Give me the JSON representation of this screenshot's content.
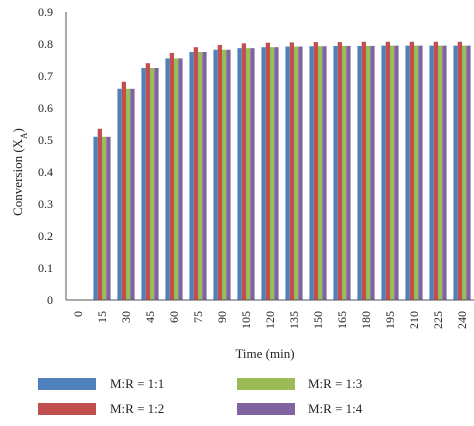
{
  "chart_data": {
    "type": "bar",
    "categories": [
      "0",
      "15",
      "30",
      "45",
      "60",
      "75",
      "90",
      "105",
      "120",
      "135",
      "150",
      "165",
      "180",
      "195",
      "210",
      "225",
      "240"
    ],
    "series": [
      {
        "name": "M:R = 1:1",
        "color": "#4f81bd",
        "values": [
          0,
          0.51,
          0.66,
          0.725,
          0.755,
          0.775,
          0.782,
          0.787,
          0.79,
          0.792,
          0.793,
          0.794,
          0.794,
          0.795,
          0.795,
          0.795,
          0.795
        ]
      },
      {
        "name": "M:R = 1:2",
        "color": "#c0504d",
        "values": [
          0,
          0.535,
          0.682,
          0.74,
          0.772,
          0.79,
          0.797,
          0.802,
          0.804,
          0.805,
          0.806,
          0.806,
          0.807,
          0.807,
          0.807,
          0.807,
          0.807
        ]
      },
      {
        "name": "M:R = 1:3",
        "color": "#9bbb59",
        "values": [
          0,
          0.51,
          0.66,
          0.725,
          0.755,
          0.775,
          0.782,
          0.787,
          0.79,
          0.792,
          0.793,
          0.794,
          0.794,
          0.795,
          0.795,
          0.795,
          0.795
        ]
      },
      {
        "name": "M:R = 1:4",
        "color": "#8064a2",
        "values": [
          0,
          0.51,
          0.66,
          0.725,
          0.755,
          0.775,
          0.782,
          0.787,
          0.79,
          0.792,
          0.793,
          0.794,
          0.794,
          0.795,
          0.795,
          0.795,
          0.795
        ]
      }
    ],
    "xlabel": "Time (min)",
    "ylabel_main": "Conversion (X",
    "ylabel_sub": "A",
    "ylabel_close": ")",
    "ylim": [
      0,
      0.9
    ],
    "yticks": [
      "0",
      "0.1",
      "0.2",
      "0.3",
      "0.4",
      "0.5",
      "0.6",
      "0.7",
      "0.8",
      "0.9"
    ],
    "grid": false,
    "legend_position": "bottom"
  }
}
